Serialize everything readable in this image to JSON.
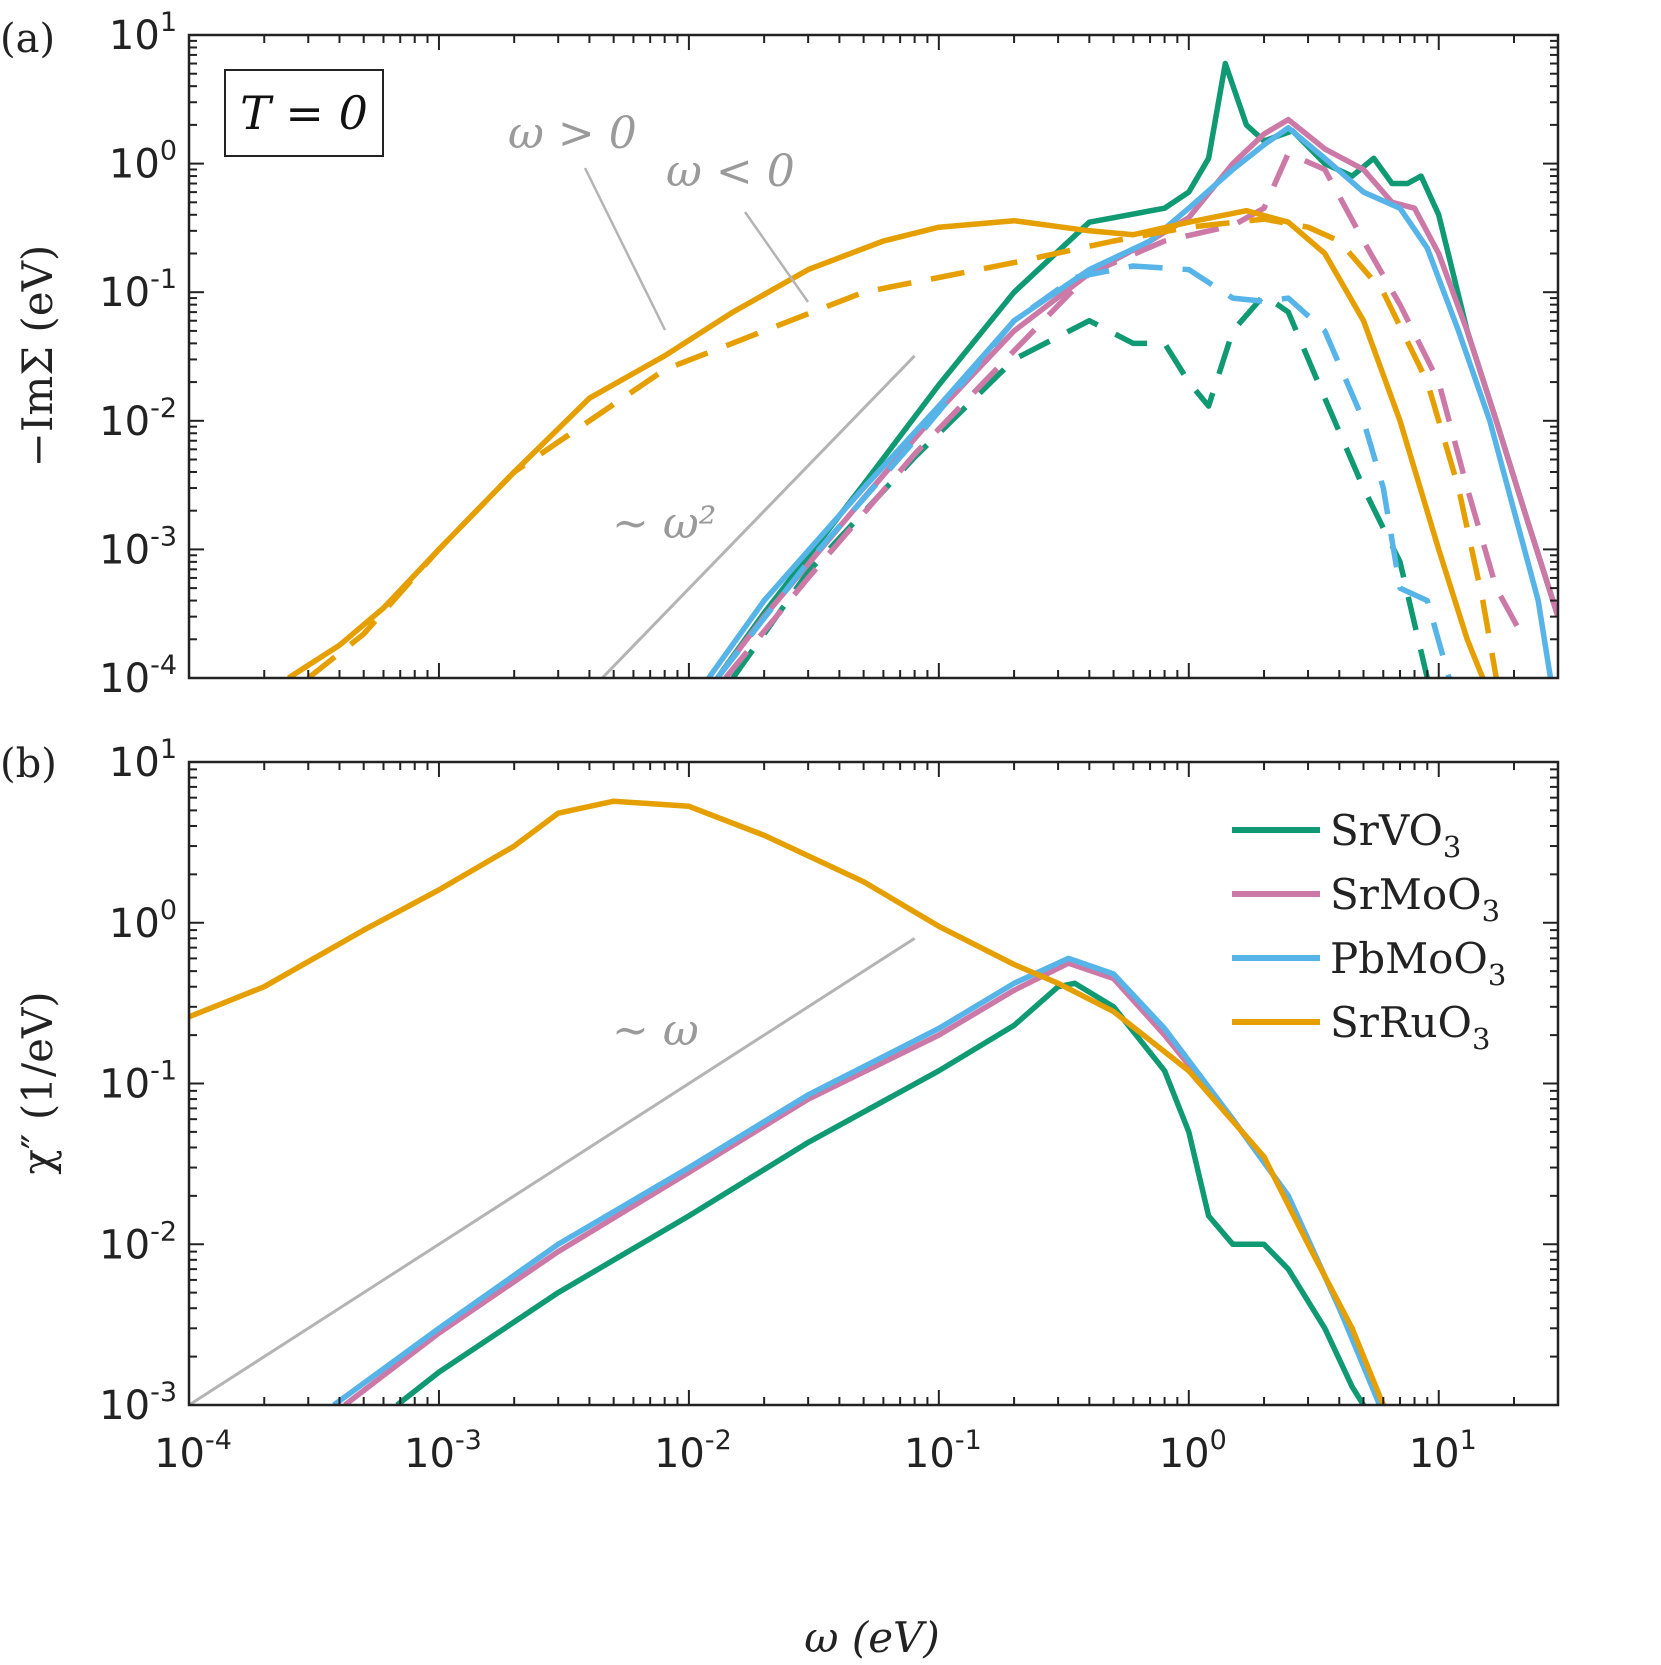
{
  "chart_data": [
    {
      "panel_label": "(a)",
      "type": "line",
      "xscale": "log",
      "yscale": "log",
      "xlim": [
        0.0001,
        30
      ],
      "ylim": [
        0.0001,
        10
      ],
      "xlabel": "",
      "ylabel": "−ImΣ (eV)",
      "xticks": [
        "10-4",
        "10-3",
        "10-2",
        "10-1",
        "100",
        "101"
      ],
      "yticks": [
        "10-4",
        "10-3",
        "10-2",
        "10-1",
        "100",
        "101"
      ],
      "box_label": "T = 0",
      "annotations": [
        "ω > 0",
        "ω < 0",
        "∼ ω²"
      ],
      "reference_line": {
        "label": "∼ ω²",
        "slope_decades": 2,
        "points": [
          [
            0.0045,
            0.0001
          ],
          [
            0.08,
            0.032
          ]
        ]
      },
      "series": [
        {
          "material": "SrVO3",
          "color": "#0f9a73",
          "style": "solid",
          "branch": "ω > 0",
          "points": [
            [
              0.013,
              0.0001
            ],
            [
              0.02,
              0.00032
            ],
            [
              0.05,
              0.0032
            ],
            [
              0.1,
              0.019
            ],
            [
              0.2,
              0.1
            ],
            [
              0.4,
              0.35
            ],
            [
              0.8,
              0.45
            ],
            [
              1.0,
              0.6
            ],
            [
              1.2,
              1.1
            ],
            [
              1.4,
              6.0
            ],
            [
              1.7,
              2.0
            ],
            [
              2.0,
              1.5
            ],
            [
              2.6,
              1.8
            ],
            [
              3.5,
              1.0
            ],
            [
              4.5,
              0.8
            ],
            [
              5.5,
              1.1
            ],
            [
              6.5,
              0.7
            ],
            [
              7.5,
              0.7
            ],
            [
              8.5,
              0.8
            ],
            [
              10,
              0.4
            ],
            [
              13,
              0.05
            ],
            [
              17,
              0.01
            ],
            [
              22,
              0.002
            ],
            [
              30,
              0.0003
            ]
          ]
        },
        {
          "material": "SrVO3",
          "color": "#0f9a73",
          "style": "dashed",
          "branch": "ω < 0",
          "points": [
            [
              0.015,
              0.0001
            ],
            [
              0.03,
              0.00067
            ],
            [
              0.08,
              0.0052
            ],
            [
              0.2,
              0.03
            ],
            [
              0.4,
              0.06
            ],
            [
              0.6,
              0.04
            ],
            [
              0.8,
              0.04
            ],
            [
              1.0,
              0.02
            ],
            [
              1.2,
              0.013
            ],
            [
              1.5,
              0.05
            ],
            [
              2.0,
              0.095
            ],
            [
              2.5,
              0.07
            ],
            [
              3.5,
              0.015
            ],
            [
              5.0,
              0.003
            ],
            [
              7.0,
              0.0008
            ],
            [
              9.0,
              0.0001
            ]
          ]
        },
        {
          "material": "SrMoO3",
          "color": "#cc79a7",
          "style": "solid",
          "branch": "ω > 0",
          "points": [
            [
              0.013,
              0.0001
            ],
            [
              0.02,
              0.0003
            ],
            [
              0.05,
              0.0025
            ],
            [
              0.1,
              0.012
            ],
            [
              0.2,
              0.05
            ],
            [
              0.4,
              0.14
            ],
            [
              0.7,
              0.25
            ],
            [
              1.0,
              0.38
            ],
            [
              1.5,
              1.0
            ],
            [
              2.0,
              1.7
            ],
            [
              2.5,
              2.2
            ],
            [
              3.5,
              1.3
            ],
            [
              5.0,
              0.9
            ],
            [
              6.5,
              0.5
            ],
            [
              8.0,
              0.45
            ],
            [
              10,
              0.2
            ],
            [
              13,
              0.05
            ],
            [
              17,
              0.01
            ],
            [
              22,
              0.002
            ],
            [
              30,
              0.0003
            ]
          ]
        },
        {
          "material": "SrMoO3",
          "color": "#cc79a7",
          "style": "dashed",
          "branch": "ω < 0",
          "points": [
            [
              0.014,
              0.0001
            ],
            [
              0.03,
              0.0006
            ],
            [
              0.08,
              0.0055
            ],
            [
              0.2,
              0.035
            ],
            [
              0.4,
              0.14
            ],
            [
              0.8,
              0.25
            ],
            [
              1.5,
              0.33
            ],
            [
              2.0,
              0.45
            ],
            [
              2.5,
              1.2
            ],
            [
              3.5,
              0.9
            ],
            [
              5.0,
              0.25
            ],
            [
              7.0,
              0.08
            ],
            [
              10,
              0.02
            ],
            [
              13,
              0.003
            ],
            [
              17,
              0.0005
            ],
            [
              22,
              0.0002
            ]
          ]
        },
        {
          "material": "PbMoO3",
          "color": "#56b4e9",
          "style": "solid",
          "branch": "ω > 0",
          "points": [
            [
              0.012,
              0.0001
            ],
            [
              0.02,
              0.0004
            ],
            [
              0.05,
              0.003
            ],
            [
              0.1,
              0.013
            ],
            [
              0.2,
              0.06
            ],
            [
              0.4,
              0.15
            ],
            [
              0.7,
              0.25
            ],
            [
              1.0,
              0.45
            ],
            [
              1.5,
              0.9
            ],
            [
              2.0,
              1.4
            ],
            [
              2.5,
              1.9
            ],
            [
              3.5,
              1.1
            ],
            [
              5.0,
              0.6
            ],
            [
              7.0,
              0.45
            ],
            [
              9.0,
              0.22
            ],
            [
              12,
              0.05
            ],
            [
              16,
              0.01
            ],
            [
              20,
              0.002
            ],
            [
              25,
              0.0004
            ],
            [
              28,
              0.0001
            ]
          ]
        },
        {
          "material": "PbMoO3",
          "color": "#56b4e9",
          "style": "dashed",
          "branch": "ω < 0",
          "points": [
            [
              0.013,
              0.0001
            ],
            [
              0.03,
              0.0008
            ],
            [
              0.08,
              0.007
            ],
            [
              0.2,
              0.06
            ],
            [
              0.35,
              0.13
            ],
            [
              0.6,
              0.16
            ],
            [
              1.0,
              0.15
            ],
            [
              1.5,
              0.09
            ],
            [
              2.0,
              0.085
            ],
            [
              2.5,
              0.09
            ],
            [
              3.5,
              0.05
            ],
            [
              5.0,
              0.01
            ],
            [
              6.0,
              0.003
            ],
            [
              7.0,
              0.0005
            ],
            [
              9.0,
              0.0004
            ],
            [
              11,
              0.0001
            ]
          ]
        },
        {
          "material": "SrRuO3",
          "color": "#e69f00",
          "style": "solid",
          "branch": "ω > 0",
          "points": [
            [
              0.00025,
              0.0001
            ],
            [
              0.0004,
              0.00018
            ],
            [
              0.0006,
              0.00035
            ],
            [
              0.001,
              0.001
            ],
            [
              0.002,
              0.004
            ],
            [
              0.004,
              0.015
            ],
            [
              0.008,
              0.032
            ],
            [
              0.015,
              0.07
            ],
            [
              0.03,
              0.15
            ],
            [
              0.06,
              0.25
            ],
            [
              0.1,
              0.32
            ],
            [
              0.2,
              0.36
            ],
            [
              0.4,
              0.3
            ],
            [
              0.6,
              0.28
            ],
            [
              1.0,
              0.35
            ],
            [
              1.7,
              0.43
            ],
            [
              2.5,
              0.35
            ],
            [
              3.5,
              0.2
            ],
            [
              5.0,
              0.06
            ],
            [
              7.0,
              0.01
            ],
            [
              10,
              0.001
            ],
            [
              13,
              0.0002
            ],
            [
              15,
              0.0001
            ]
          ]
        },
        {
          "material": "SrRuO3",
          "color": "#e69f00",
          "style": "dashed",
          "branch": "ω < 0",
          "points": [
            [
              0.0003,
              0.0001
            ],
            [
              0.0005,
              0.00022
            ],
            [
              0.001,
              0.001
            ],
            [
              0.002,
              0.004
            ],
            [
              0.004,
              0.01
            ],
            [
              0.008,
              0.025
            ],
            [
              0.02,
              0.05
            ],
            [
              0.05,
              0.1
            ],
            [
              0.1,
              0.13
            ],
            [
              0.2,
              0.17
            ],
            [
              0.5,
              0.25
            ],
            [
              1.0,
              0.32
            ],
            [
              2.0,
              0.37
            ],
            [
              3.0,
              0.32
            ],
            [
              4.0,
              0.25
            ],
            [
              6.0,
              0.1
            ],
            [
              9.0,
              0.02
            ],
            [
              12,
              0.003
            ],
            [
              15,
              0.0004
            ],
            [
              17,
              0.0001
            ]
          ]
        }
      ]
    },
    {
      "panel_label": "(b)",
      "type": "line",
      "xscale": "log",
      "yscale": "log",
      "xlim": [
        0.0001,
        30
      ],
      "ylim": [
        0.001,
        10
      ],
      "xlabel": "ω (eV)",
      "ylabel": "χ″ (1/eV)",
      "xticks": [
        "10-4",
        "10-3",
        "10-2",
        "10-1",
        "100",
        "101"
      ],
      "yticks": [
        "10-3",
        "10-2",
        "10-1",
        "100",
        "101"
      ],
      "annotations": [
        "∼ ω"
      ],
      "legend": {
        "placement": "top-right",
        "entries": [
          "SrVO3",
          "SrMoO3",
          "PbMoO3",
          "SrRuO3"
        ]
      },
      "reference_line": {
        "label": "∼ ω",
        "slope_decades": 1,
        "points": [
          [
            0.0001,
            0.001
          ],
          [
            0.08,
            0.8
          ]
        ]
      },
      "series": [
        {
          "name": "SrVO3",
          "color": "#0f9a73",
          "style": "solid",
          "points": [
            [
              0.00068,
              0.001
            ],
            [
              0.001,
              0.0016
            ],
            [
              0.003,
              0.005
            ],
            [
              0.01,
              0.015
            ],
            [
              0.03,
              0.043
            ],
            [
              0.1,
              0.12
            ],
            [
              0.2,
              0.23
            ],
            [
              0.3,
              0.4
            ],
            [
              0.35,
              0.42
            ],
            [
              0.5,
              0.3
            ],
            [
              0.8,
              0.12
            ],
            [
              1.0,
              0.05
            ],
            [
              1.2,
              0.015
            ],
            [
              1.5,
              0.01
            ],
            [
              2.0,
              0.01
            ],
            [
              2.5,
              0.007
            ],
            [
              3.5,
              0.003
            ],
            [
              4.5,
              0.0013
            ],
            [
              5.0,
              0.001
            ]
          ]
        },
        {
          "name": "SrMoO3",
          "color": "#cc79a7",
          "style": "solid",
          "points": [
            [
              0.00042,
              0.001
            ],
            [
              0.001,
              0.0028
            ],
            [
              0.003,
              0.009
            ],
            [
              0.01,
              0.028
            ],
            [
              0.03,
              0.08
            ],
            [
              0.1,
              0.2
            ],
            [
              0.2,
              0.38
            ],
            [
              0.33,
              0.56
            ],
            [
              0.5,
              0.45
            ],
            [
              0.8,
              0.2
            ],
            [
              1.5,
              0.06
            ],
            [
              2.5,
              0.02
            ],
            [
              4.0,
              0.004
            ],
            [
              6.0,
              0.001
            ]
          ]
        },
        {
          "name": "PbMoO3",
          "color": "#56b4e9",
          "style": "solid",
          "points": [
            [
              0.00038,
              0.001
            ],
            [
              0.001,
              0.003
            ],
            [
              0.003,
              0.01
            ],
            [
              0.01,
              0.03
            ],
            [
              0.03,
              0.085
            ],
            [
              0.1,
              0.22
            ],
            [
              0.2,
              0.42
            ],
            [
              0.33,
              0.6
            ],
            [
              0.5,
              0.48
            ],
            [
              0.8,
              0.22
            ],
            [
              1.5,
              0.06
            ],
            [
              2.5,
              0.02
            ],
            [
              4.0,
              0.004
            ],
            [
              5.8,
              0.001
            ]
          ]
        },
        {
          "name": "SrRuO3",
          "color": "#e69f00",
          "style": "solid",
          "points": [
            [
              0.0001,
              0.26
            ],
            [
              0.0002,
              0.4
            ],
            [
              0.0005,
              0.9
            ],
            [
              0.001,
              1.6
            ],
            [
              0.002,
              3.0
            ],
            [
              0.003,
              4.8
            ],
            [
              0.005,
              5.7
            ],
            [
              0.01,
              5.3
            ],
            [
              0.02,
              3.5
            ],
            [
              0.05,
              1.8
            ],
            [
              0.1,
              0.95
            ],
            [
              0.2,
              0.55
            ],
            [
              0.3,
              0.42
            ],
            [
              0.5,
              0.28
            ],
            [
              1.0,
              0.12
            ],
            [
              2.0,
              0.035
            ],
            [
              3.0,
              0.01
            ],
            [
              4.5,
              0.003
            ],
            [
              6.0,
              0.001
            ]
          ]
        }
      ]
    }
  ]
}
